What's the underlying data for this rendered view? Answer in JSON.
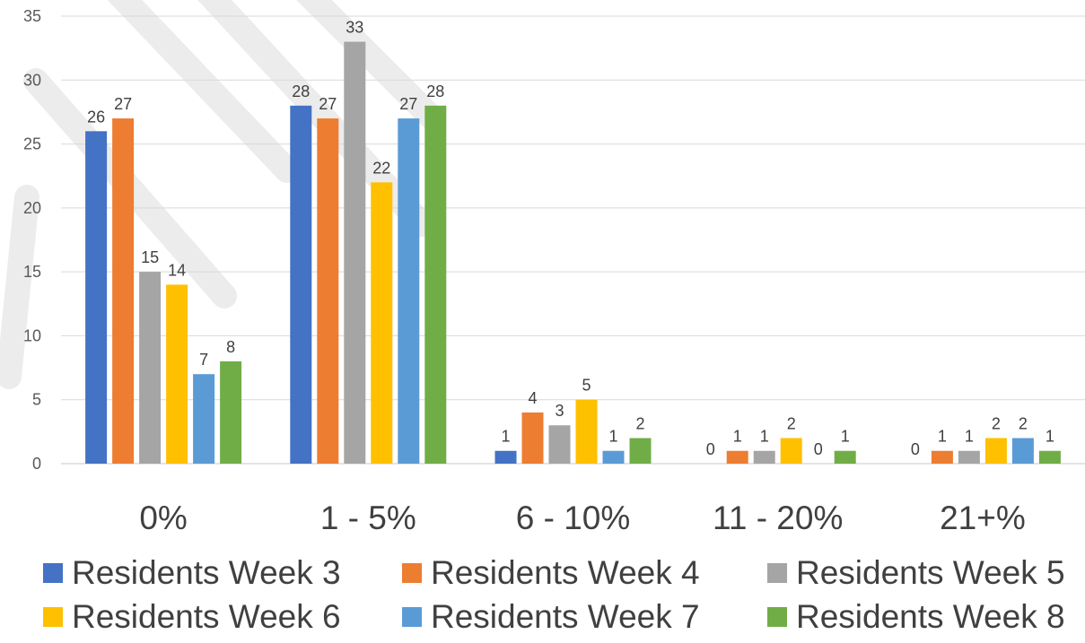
{
  "chart_data": {
    "type": "bar",
    "title": "",
    "xlabel": "",
    "ylabel": "",
    "ylim": [
      0,
      35
    ],
    "yticks": [
      0,
      5,
      10,
      15,
      20,
      25,
      30,
      35
    ],
    "grid": true,
    "legend_position": "bottom",
    "categories": [
      "0%",
      "1 - 5%",
      "6 - 10%",
      "11 - 20%",
      "21+%"
    ],
    "series": [
      {
        "name": "Residents Week 3",
        "color": "#4472C4",
        "values": [
          26,
          28,
          1,
          0,
          0
        ]
      },
      {
        "name": "Residents Week 4",
        "color": "#ED7D31",
        "values": [
          27,
          27,
          4,
          1,
          1
        ]
      },
      {
        "name": "Residents Week 5",
        "color": "#A5A5A5",
        "values": [
          15,
          33,
          3,
          1,
          1
        ]
      },
      {
        "name": "Residents Week 6",
        "color": "#FFC000",
        "values": [
          14,
          22,
          5,
          2,
          2
        ]
      },
      {
        "name": "Residents Week 7",
        "color": "#5B9BD5",
        "values": [
          7,
          27,
          1,
          0,
          2
        ]
      },
      {
        "name": "Residents Week 8",
        "color": "#70AD47",
        "values": [
          8,
          28,
          2,
          1,
          1
        ]
      }
    ]
  }
}
